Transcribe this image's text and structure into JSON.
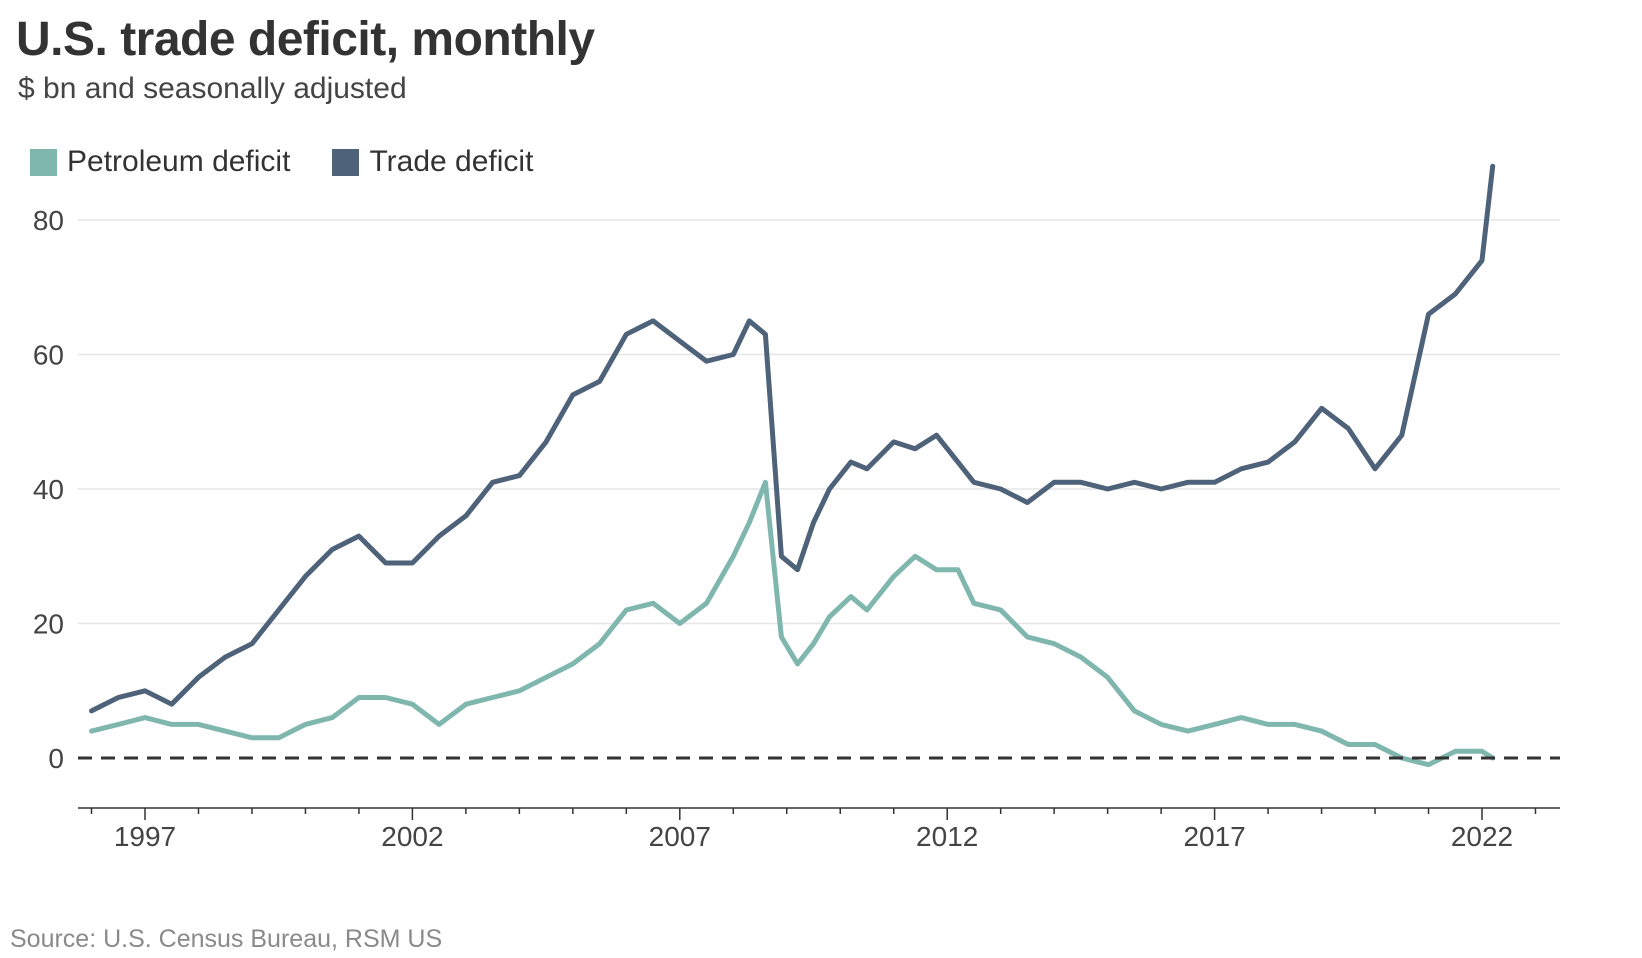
{
  "title": "U.S. trade deficit, monthly",
  "subtitle": "$ bn and seasonally adjusted",
  "source": "Source: U.S. Census Bureau, RSM US",
  "legend": [
    {
      "label": "Petroleum deficit",
      "color": "#7fb7ae"
    },
    {
      "label": "Trade deficit",
      "color": "#4e6279"
    }
  ],
  "colors": {
    "petroleum": "#7fb7ae",
    "trade": "#4e6279",
    "grid": "#e6e6e6",
    "zero_line": "#333333",
    "axis": "#333333",
    "tick_text": "#444444"
  },
  "chart_data": {
    "type": "line",
    "title": "U.S. trade deficit, monthly",
    "subtitle": "$ bn and seasonally adjusted",
    "xlabel": "",
    "ylabel": "",
    "xlim": [
      1995.75,
      2023.5
    ],
    "ylim": [
      -8,
      90
    ],
    "x_ticks": [
      1997,
      2002,
      2007,
      2012,
      2017,
      2022
    ],
    "x_tick_labels": [
      "1997",
      "2002",
      "2007",
      "2012",
      "2017",
      "2022"
    ],
    "y_ticks": [
      0,
      20,
      40,
      60,
      80
    ],
    "y_tick_labels": [
      "0",
      "20",
      "40",
      "60",
      "80"
    ],
    "grid": true,
    "legend_position": "top-left",
    "reference_line": {
      "y": 0,
      "style": "dashed"
    },
    "series": [
      {
        "name": "Petroleum deficit",
        "x": [
          1996.0,
          1996.5,
          1997.0,
          1997.5,
          1998.0,
          1998.5,
          1999.0,
          1999.5,
          2000.0,
          2000.5,
          2001.0,
          2001.5,
          2002.0,
          2002.5,
          2003.0,
          2003.5,
          2004.0,
          2004.5,
          2005.0,
          2005.5,
          2006.0,
          2006.5,
          2007.0,
          2007.5,
          2008.0,
          2008.3,
          2008.6,
          2008.9,
          2009.2,
          2009.5,
          2009.8,
          2010.2,
          2010.5,
          2011.0,
          2011.4,
          2011.8,
          2012.2,
          2012.5,
          2013.0,
          2013.5,
          2014.0,
          2014.5,
          2015.0,
          2015.5,
          2016.0,
          2016.5,
          2017.0,
          2017.5,
          2018.0,
          2018.5,
          2019.0,
          2019.5,
          2020.0,
          2020.5,
          2021.0,
          2021.5,
          2022.0,
          2022.2
        ],
        "values": [
          4,
          5,
          6,
          5,
          5,
          4,
          3,
          3,
          5,
          6,
          9,
          9,
          8,
          5,
          8,
          9,
          10,
          12,
          14,
          17,
          22,
          23,
          20,
          23,
          30,
          35,
          41,
          18,
          14,
          17,
          21,
          24,
          22,
          27,
          30,
          28,
          28,
          23,
          22,
          18,
          17,
          15,
          12,
          7,
          5,
          4,
          5,
          6,
          5,
          5,
          4,
          2,
          2,
          0,
          -1,
          1,
          1,
          0
        ]
      },
      {
        "name": "Trade deficit",
        "x": [
          1996.0,
          1996.5,
          1997.0,
          1997.5,
          1998.0,
          1998.5,
          1999.0,
          1999.5,
          2000.0,
          2000.5,
          2001.0,
          2001.5,
          2002.0,
          2002.5,
          2003.0,
          2003.5,
          2004.0,
          2004.5,
          2005.0,
          2005.5,
          2006.0,
          2006.5,
          2007.0,
          2007.5,
          2008.0,
          2008.3,
          2008.6,
          2008.9,
          2009.2,
          2009.5,
          2009.8,
          2010.2,
          2010.5,
          2011.0,
          2011.4,
          2011.8,
          2012.2,
          2012.5,
          2013.0,
          2013.5,
          2014.0,
          2014.5,
          2015.0,
          2015.5,
          2016.0,
          2016.5,
          2017.0,
          2017.5,
          2018.0,
          2018.5,
          2019.0,
          2019.5,
          2020.0,
          2020.5,
          2021.0,
          2021.5,
          2022.0,
          2022.2
        ],
        "values": [
          7,
          9,
          10,
          8,
          12,
          15,
          17,
          22,
          27,
          31,
          33,
          29,
          29,
          33,
          36,
          41,
          42,
          47,
          54,
          56,
          63,
          65,
          62,
          59,
          60,
          65,
          63,
          30,
          28,
          35,
          40,
          44,
          43,
          47,
          46,
          48,
          44,
          41,
          40,
          38,
          41,
          41,
          40,
          41,
          40,
          41,
          41,
          43,
          44,
          47,
          52,
          49,
          43,
          48,
          66,
          69,
          74,
          88
        ]
      }
    ]
  }
}
